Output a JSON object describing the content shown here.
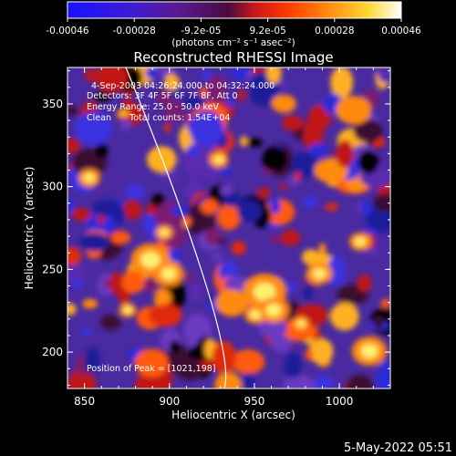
{
  "colorbar": {
    "tick_labels": [
      "-0.00046",
      "-0.00028",
      "-9.2e-05",
      "9.2e-05",
      "0.00028",
      "0.00046"
    ],
    "unit_label": "(photons cm⁻² s⁻¹ asec⁻²)",
    "range": [
      -0.00046,
      0.00046
    ],
    "colormap": "rainbow-to-white (blue, purple, red, orange, yellow, white)"
  },
  "title": "Reconstructed RHESSI Image",
  "info": {
    "time_range": "4-Sep-2003 04:26:24.000 to 04:32:24.000",
    "detectors": "Detectors: 3F 4F 5F 6F 7F 8F, Att 0",
    "energy_range": "Energy Range: 25.0 - 50.0 keV",
    "method": "Clean",
    "total_counts": "Total counts: 1.54E+04",
    "peak": "Position of Peak = [1021,198]"
  },
  "axes": {
    "xlabel": "Heliocentric X (arcsec)",
    "ylabel": "Heliocentric Y (arcsec)",
    "x_ticks": [
      "850",
      "900",
      "950",
      "1000"
    ],
    "y_ticks": [
      "200",
      "250",
      "300",
      "350"
    ],
    "x_values": [
      850,
      900,
      950,
      1000
    ],
    "y_values": [
      200,
      250,
      300,
      350
    ],
    "xlim": [
      840,
      1030
    ],
    "ylim": [
      178,
      372
    ]
  },
  "timestamp": "5-May-2022 05:51",
  "colors": {
    "background": "#000000",
    "foreground": "#ffffff",
    "limb": "#ffffff"
  }
}
